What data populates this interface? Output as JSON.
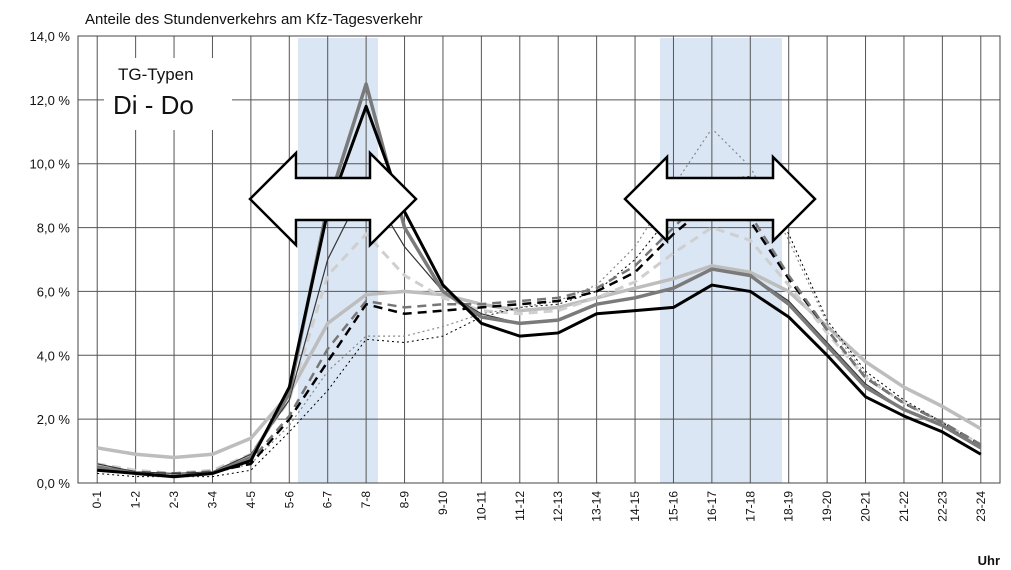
{
  "chart_data": {
    "type": "line",
    "title": "Anteile des Stundenverkehrs am Kfz-Tagesverkehr",
    "annotations": [
      "TG-Typen",
      "Di - Do"
    ],
    "x_label": "Uhr",
    "categories": [
      "0-1",
      "1-2",
      "2-3",
      "3-4",
      "4-5",
      "5-6",
      "6-7",
      "7-8",
      "8-9",
      "9-10",
      "10-11",
      "11-12",
      "12-13",
      "13-14",
      "14-15",
      "15-16",
      "16-17",
      "17-18",
      "18-19",
      "19-20",
      "20-21",
      "21-22",
      "22-23",
      "23-24"
    ],
    "ylim": [
      0,
      14
    ],
    "yticks": [
      {
        "value": 0,
        "label": "0,0 %"
      },
      {
        "value": 2,
        "label": "2,0 %"
      },
      {
        "value": 4,
        "label": "4,0 %"
      },
      {
        "value": 6,
        "label": "6,0 %"
      },
      {
        "value": 8,
        "label": "8,0 %"
      },
      {
        "value": 10,
        "label": "10,0 %"
      },
      {
        "value": 12,
        "label": "12,0 %"
      },
      {
        "value": 14,
        "label": "14,0 %"
      }
    ],
    "grid": true,
    "series": [
      {
        "color": "#bdbdbd",
        "width": 3.5,
        "dash": "solid",
        "values": [
          1.1,
          0.9,
          0.8,
          0.9,
          1.4,
          2.8,
          5.0,
          5.9,
          6.0,
          5.9,
          5.6,
          5.4,
          5.5,
          5.8,
          6.1,
          6.4,
          6.8,
          6.6,
          6.0,
          4.9,
          3.8,
          3.0,
          2.4,
          1.7
        ]
      },
      {
        "color": "#cfcfcf",
        "width": 3,
        "dash": "dashed",
        "values": [
          0.6,
          0.4,
          0.3,
          0.4,
          0.9,
          2.6,
          6.5,
          7.8,
          6.5,
          5.8,
          5.4,
          5.3,
          5.4,
          5.8,
          6.3,
          7.2,
          8.0,
          7.6,
          6.2,
          4.7,
          3.3,
          2.5,
          1.9,
          1.2
        ]
      },
      {
        "color": "#000000",
        "width": 1,
        "dash": "dotted",
        "values": [
          0.3,
          0.2,
          0.2,
          0.2,
          0.4,
          1.6,
          2.9,
          4.5,
          4.4,
          4.6,
          5.2,
          5.5,
          5.6,
          6.0,
          7.0,
          8.5,
          9.5,
          9.6,
          7.8,
          5.1,
          3.5,
          2.6,
          1.9,
          1.1
        ]
      },
      {
        "color": "#888888",
        "width": 1.2,
        "dash": "dotted",
        "values": [
          0.4,
          0.3,
          0.2,
          0.3,
          0.6,
          1.8,
          3.5,
          4.6,
          4.6,
          4.9,
          5.3,
          5.5,
          5.7,
          6.2,
          7.4,
          9.3,
          11.1,
          9.9,
          7.6,
          5.0,
          3.4,
          2.5,
          1.9,
          1.1
        ]
      },
      {
        "color": "#000000",
        "width": 2.5,
        "dash": "dashed",
        "values": [
          0.5,
          0.3,
          0.3,
          0.35,
          0.6,
          2.0,
          3.8,
          5.6,
          5.3,
          5.4,
          5.5,
          5.6,
          5.7,
          6.0,
          6.6,
          7.8,
          8.8,
          8.2,
          6.4,
          4.8,
          3.3,
          2.5,
          1.9,
          1.2
        ]
      },
      {
        "color": "#777777",
        "width": 2.5,
        "dash": "dashed",
        "values": [
          0.5,
          0.35,
          0.3,
          0.35,
          0.7,
          2.1,
          4.2,
          5.7,
          5.5,
          5.6,
          5.6,
          5.7,
          5.8,
          6.1,
          6.8,
          8.0,
          9.2,
          8.4,
          6.5,
          4.8,
          3.3,
          2.5,
          1.9,
          1.2
        ]
      },
      {
        "color": "#333333",
        "width": 1.2,
        "dash": "solid",
        "values": [
          0.6,
          0.35,
          0.3,
          0.35,
          0.9,
          2.6,
          7.0,
          9.4,
          7.4,
          6.0,
          5.3,
          5.0,
          5.1,
          5.6,
          5.8,
          6.1,
          6.7,
          6.5,
          5.7,
          4.4,
          3.1,
          2.3,
          1.8,
          1.1
        ]
      },
      {
        "color": "#7a7a7a",
        "width": 3.5,
        "dash": "solid",
        "values": [
          0.5,
          0.3,
          0.2,
          0.3,
          0.8,
          2.8,
          8.7,
          12.5,
          8.0,
          6.0,
          5.2,
          5.0,
          5.1,
          5.6,
          5.8,
          6.1,
          6.7,
          6.5,
          5.6,
          4.3,
          3.0,
          2.3,
          1.8,
          1.1
        ]
      },
      {
        "color": "#000000",
        "width": 3,
        "dash": "solid",
        "values": [
          0.4,
          0.3,
          0.2,
          0.3,
          0.7,
          3.0,
          8.5,
          11.8,
          8.5,
          6.2,
          5.0,
          4.6,
          4.7,
          5.3,
          5.4,
          5.5,
          6.2,
          6.0,
          5.2,
          4.0,
          2.7,
          2.1,
          1.6,
          0.9
        ]
      }
    ]
  }
}
